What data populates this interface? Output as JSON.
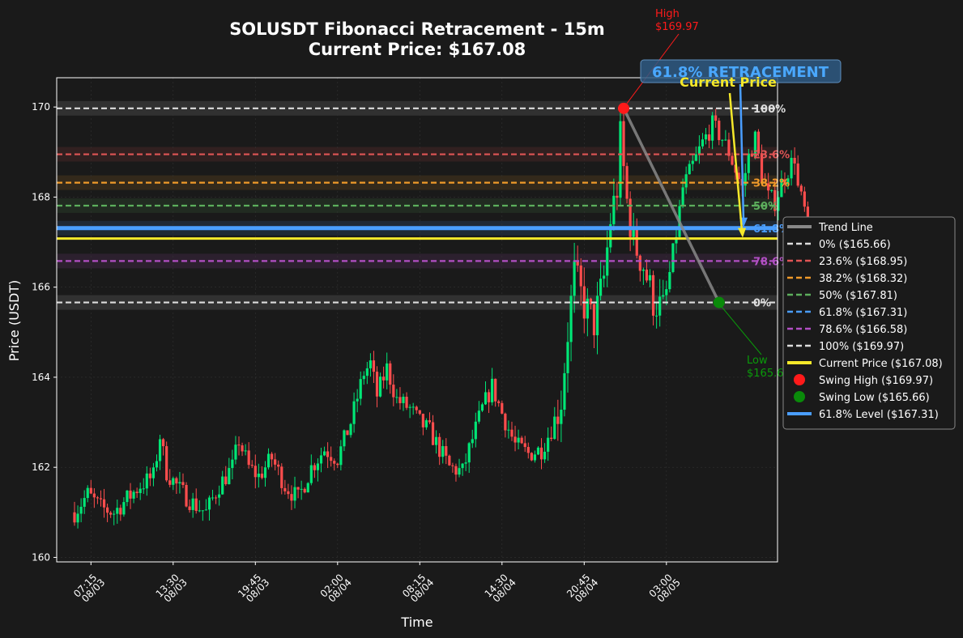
{
  "colors": {
    "background": "#1a1a1a",
    "up_candle": "#00e676",
    "down_candle": "#ff4d4d",
    "trend_line": "#888888",
    "current_price": "#f5e82a",
    "level_618": "#4a9eff",
    "swing_high": "#ff1a1a",
    "swing_low": "#0a8a0a",
    "annotation_box": "#2f5a84"
  },
  "chart_data": {
    "type": "candlestick",
    "title_line1": "SOLUSDT Fibonacci Retracement - 15m",
    "title_line2": "Current Price: $167.08",
    "xlabel": "Time",
    "ylabel": "Price (USDT)",
    "ylim": [
      159.9,
      170.65
    ],
    "x_ticks": [
      {
        "time": "07:15",
        "date": "08/03"
      },
      {
        "time": "13:30",
        "date": "08/03"
      },
      {
        "time": "19:45",
        "date": "08/03"
      },
      {
        "time": "02:00",
        "date": "08/04"
      },
      {
        "time": "08:15",
        "date": "08/04"
      },
      {
        "time": "14:30",
        "date": "08/04"
      },
      {
        "time": "20:45",
        "date": "08/04"
      },
      {
        "time": "03:00",
        "date": "08/05"
      }
    ],
    "y_ticks": [
      160,
      162,
      164,
      166,
      168,
      170
    ],
    "fib_levels": [
      {
        "pct": "0%",
        "price": 165.66,
        "color": "#dddddd",
        "label": "0%"
      },
      {
        "pct": "23.6%",
        "price": 168.95,
        "color": "#e05555",
        "label": "23.6%"
      },
      {
        "pct": "38.2%",
        "price": 168.32,
        "color": "#ef9a2a",
        "label": "38.2%"
      },
      {
        "pct": "50%",
        "price": 167.81,
        "color": "#5cae5c",
        "label": "50%"
      },
      {
        "pct": "61.8%",
        "price": 167.31,
        "color": "#4a9eff",
        "label": "61.8%"
      },
      {
        "pct": "78.6%",
        "price": 166.58,
        "color": "#b24fc4",
        "label": "78.6%"
      },
      {
        "pct": "100%",
        "price": 169.97,
        "color": "#dddddd",
        "label": "100%"
      }
    ],
    "current_price": 167.08,
    "swing_high": {
      "price": 169.97,
      "label_top": "High",
      "label_bottom": "$169.97"
    },
    "swing_low": {
      "price": 165.66,
      "label_top": "Low",
      "label_bottom": "$165.66"
    },
    "annotations": {
      "retracement": "61.8% RETRACEMENT",
      "current": "Current Price"
    },
    "legend": [
      {
        "label": "Trend Line",
        "kind": "line",
        "color": "#888888"
      },
      {
        "label": "0% ($165.66)",
        "kind": "dash",
        "color": "#dddddd"
      },
      {
        "label": "23.6% ($168.95)",
        "kind": "dash",
        "color": "#e05555"
      },
      {
        "label": "38.2% ($168.32)",
        "kind": "dash",
        "color": "#ef9a2a"
      },
      {
        "label": "50% ($167.81)",
        "kind": "dash",
        "color": "#5cae5c"
      },
      {
        "label": "61.8% ($167.31)",
        "kind": "dash",
        "color": "#4a9eff"
      },
      {
        "label": "78.6% ($166.58)",
        "kind": "dash",
        "color": "#b24fc4"
      },
      {
        "label": "100% ($169.97)",
        "kind": "dash",
        "color": "#dddddd"
      },
      {
        "label": "Current Price ($167.08)",
        "kind": "line",
        "color": "#f5e82a"
      },
      {
        "label": "Swing High ($169.97)",
        "kind": "dot",
        "color": "#ff1a1a"
      },
      {
        "label": "Swing Low ($165.66)",
        "kind": "dot",
        "color": "#0a8a0a"
      },
      {
        "label": "61.8% Level ($167.31)",
        "kind": "line",
        "color": "#4a9eff"
      }
    ],
    "price_path": [
      [
        0,
        161.0
      ],
      [
        4,
        161.4
      ],
      [
        8,
        161.1
      ],
      [
        12,
        161.0
      ],
      [
        16,
        161.3
      ],
      [
        20,
        161.6
      ],
      [
        24,
        161.8
      ],
      [
        26,
        162.7
      ],
      [
        28,
        161.9
      ],
      [
        32,
        161.5
      ],
      [
        36,
        161.2
      ],
      [
        40,
        161.0
      ],
      [
        44,
        161.6
      ],
      [
        48,
        162.0
      ],
      [
        50,
        162.6
      ],
      [
        53,
        162.0
      ],
      [
        56,
        161.8
      ],
      [
        60,
        162.2
      ],
      [
        64,
        161.6
      ],
      [
        68,
        161.3
      ],
      [
        72,
        162.0
      ],
      [
        76,
        162.4
      ],
      [
        80,
        162.2
      ],
      [
        84,
        163.0
      ],
      [
        88,
        164.1
      ],
      [
        90,
        164.3
      ],
      [
        92,
        163.6
      ],
      [
        95,
        164.2
      ],
      [
        98,
        163.5
      ],
      [
        102,
        163.3
      ],
      [
        105,
        163.0
      ],
      [
        108,
        162.8
      ],
      [
        111,
        162.4
      ],
      [
        114,
        162.0
      ],
      [
        118,
        161.9
      ],
      [
        120,
        162.4
      ],
      [
        124,
        163.3
      ],
      [
        127,
        163.8
      ],
      [
        130,
        163.2
      ],
      [
        134,
        162.5
      ],
      [
        138,
        162.3
      ],
      [
        142,
        162.4
      ],
      [
        146,
        163.0
      ],
      [
        148,
        163.5
      ],
      [
        150,
        165.0
      ],
      [
        152,
        166.3
      ],
      [
        155,
        165.6
      ],
      [
        158,
        165.2
      ],
      [
        161,
        166.2
      ],
      [
        163,
        167.5
      ],
      [
        165,
        168.2
      ],
      [
        166,
        169.3
      ],
      [
        168,
        167.9
      ],
      [
        170,
        167.0
      ],
      [
        173,
        166.5
      ],
      [
        176,
        165.7
      ],
      [
        179,
        165.5
      ],
      [
        181,
        166.3
      ],
      [
        183,
        167.2
      ],
      [
        185,
        168.2
      ],
      [
        188,
        168.7
      ],
      [
        191,
        169.2
      ],
      [
        194,
        169.6
      ],
      [
        197,
        169.3
      ],
      [
        199,
        169.0
      ],
      [
        201,
        168.6
      ],
      [
        203,
        168.2
      ],
      [
        205,
        168.9
      ],
      [
        207,
        169.3
      ],
      [
        209,
        168.5
      ],
      [
        211,
        168.0
      ],
      [
        213,
        167.9
      ],
      [
        215,
        168.3
      ],
      [
        217,
        168.6
      ],
      [
        219,
        168.9
      ],
      [
        220,
        168.2
      ],
      [
        222,
        167.7
      ],
      [
        224,
        166.3
      ],
      [
        225,
        166.0
      ],
      [
        226,
        166.4
      ],
      [
        228,
        166.8
      ],
      [
        230,
        167.08
      ]
    ]
  }
}
